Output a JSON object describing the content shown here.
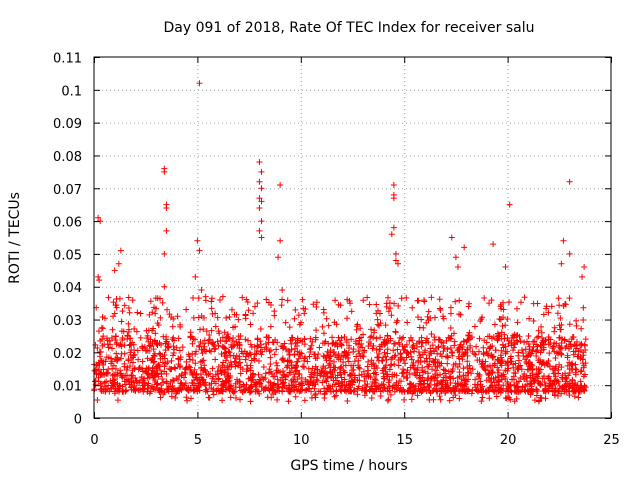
{
  "chart_data": {
    "type": "scatter",
    "title": "Day 091 of 2018, Rate Of TEC Index for receiver salu",
    "xlabel": "GPS time / hours",
    "ylabel": "ROTI / TECUs",
    "xlim": [
      0,
      25
    ],
    "ylim": [
      0,
      0.11
    ],
    "xticks": [
      0,
      5,
      10,
      15,
      20,
      25
    ],
    "yticks": [
      0,
      0.01,
      0.02,
      0.03,
      0.04,
      0.05,
      0.06,
      0.07,
      0.08,
      0.09,
      0.1,
      0.11
    ],
    "xtick_labels": [
      "0",
      "5",
      "10",
      "15",
      "20",
      "25"
    ],
    "ytick_labels": [
      "0",
      "0.01",
      "0.02",
      "0.03",
      "0.04",
      "0.05",
      "0.06",
      "0.07",
      "0.08",
      "0.09",
      "0.1",
      "0.11"
    ],
    "grid": true,
    "marker": "+",
    "color": "#ff0000",
    "x_range_of_data": [
      0,
      23.8
    ],
    "dense_band": {
      "typical_min": 0.008,
      "typical_max": 0.025
    },
    "highlighted_points": [
      {
        "x": 0.2,
        "y": 0.061
      },
      {
        "x": 0.3,
        "y": 0.06
      },
      {
        "x": 0.2,
        "y": 0.043
      },
      {
        "x": 0.25,
        "y": 0.042
      },
      {
        "x": 1.3,
        "y": 0.051
      },
      {
        "x": 1.2,
        "y": 0.047
      },
      {
        "x": 1.0,
        "y": 0.045
      },
      {
        "x": 3.4,
        "y": 0.076
      },
      {
        "x": 3.4,
        "y": 0.075
      },
      {
        "x": 3.5,
        "y": 0.065
      },
      {
        "x": 3.5,
        "y": 0.064
      },
      {
        "x": 3.5,
        "y": 0.057
      },
      {
        "x": 3.4,
        "y": 0.05
      },
      {
        "x": 3.4,
        "y": 0.04
      },
      {
        "x": 5.1,
        "y": 0.102
      },
      {
        "x": 5.0,
        "y": 0.054
      },
      {
        "x": 5.1,
        "y": 0.051
      },
      {
        "x": 4.9,
        "y": 0.043
      },
      {
        "x": 5.2,
        "y": 0.039
      },
      {
        "x": 5.4,
        "y": 0.037
      },
      {
        "x": 8.0,
        "y": 0.078
      },
      {
        "x": 8.1,
        "y": 0.075
      },
      {
        "x": 8.0,
        "y": 0.072
      },
      {
        "x": 8.1,
        "y": 0.07
      },
      {
        "x": 8.0,
        "y": 0.067
      },
      {
        "x": 8.1,
        "y": 0.066
      },
      {
        "x": 8.0,
        "y": 0.064
      },
      {
        "x": 8.1,
        "y": 0.06
      },
      {
        "x": 8.0,
        "y": 0.057
      },
      {
        "x": 8.1,
        "y": 0.055
      },
      {
        "x": 7.9,
        "y": 0.035
      },
      {
        "x": 9.0,
        "y": 0.071
      },
      {
        "x": 9.0,
        "y": 0.054
      },
      {
        "x": 8.9,
        "y": 0.049
      },
      {
        "x": 9.1,
        "y": 0.039
      },
      {
        "x": 14.5,
        "y": 0.071
      },
      {
        "x": 14.5,
        "y": 0.068
      },
      {
        "x": 14.5,
        "y": 0.067
      },
      {
        "x": 14.5,
        "y": 0.058
      },
      {
        "x": 14.4,
        "y": 0.056
      },
      {
        "x": 14.6,
        "y": 0.05
      },
      {
        "x": 14.6,
        "y": 0.048
      },
      {
        "x": 14.7,
        "y": 0.047
      },
      {
        "x": 17.3,
        "y": 0.055
      },
      {
        "x": 17.5,
        "y": 0.049
      },
      {
        "x": 17.6,
        "y": 0.046
      },
      {
        "x": 17.9,
        "y": 0.052
      },
      {
        "x": 19.3,
        "y": 0.053
      },
      {
        "x": 19.9,
        "y": 0.046
      },
      {
        "x": 20.1,
        "y": 0.065
      },
      {
        "x": 22.7,
        "y": 0.054
      },
      {
        "x": 23.0,
        "y": 0.072
      },
      {
        "x": 23.0,
        "y": 0.05
      },
      {
        "x": 22.6,
        "y": 0.047
      },
      {
        "x": 23.7,
        "y": 0.046
      },
      {
        "x": 23.6,
        "y": 0.043
      }
    ]
  }
}
